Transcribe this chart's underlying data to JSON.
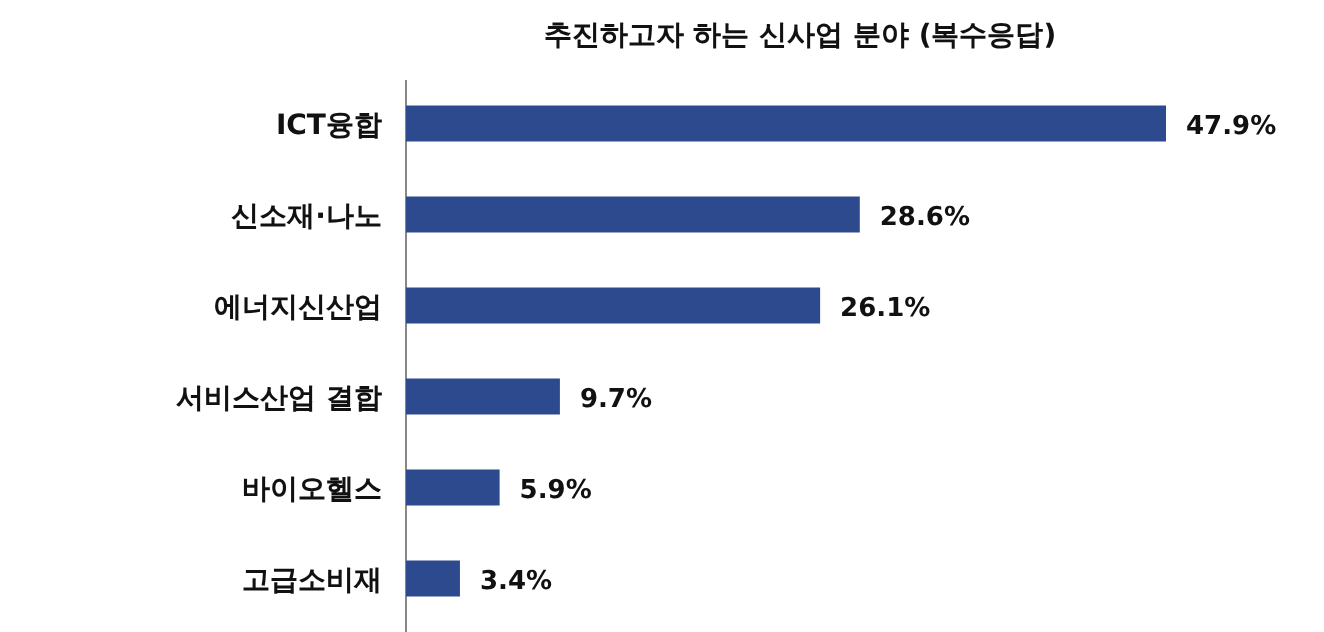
{
  "chart_data": {
    "type": "bar",
    "orientation": "horizontal",
    "title": "추진하고자 하는 신사업 분야 (복수응답)",
    "categories": [
      "ICT융합",
      "신소재·나노",
      "에너지신산업",
      "서비스산업 결합",
      "바이오헬스",
      "고급소비재"
    ],
    "values": [
      47.9,
      28.6,
      26.1,
      9.7,
      5.9,
      3.4
    ],
    "value_labels": [
      "47.9%",
      "28.6%",
      "26.1%",
      "9.7%",
      "5.9%",
      "3.4%"
    ],
    "color": "#2e4a8e"
  }
}
